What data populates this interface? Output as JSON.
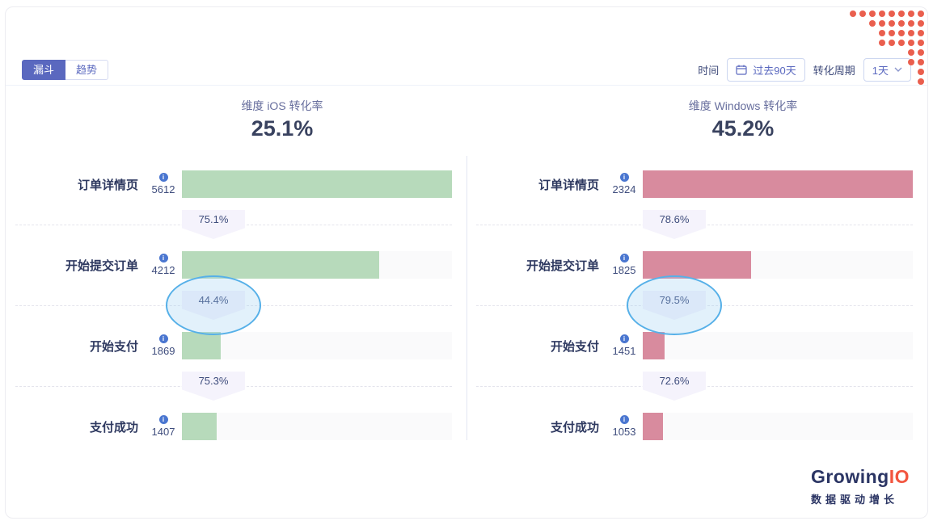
{
  "tabs": [
    {
      "label": "漏斗",
      "active": true
    },
    {
      "label": "趋势",
      "active": false
    }
  ],
  "controls": {
    "time_label": "时间",
    "time_range": "过去90天",
    "period_label": "转化周期",
    "period_value": "1天"
  },
  "funnels": [
    {
      "key": "ios",
      "dim_label": "维度 iOS 转化率",
      "overall_rate": "25.1%",
      "bar_color": "#b7dabb",
      "steps": [
        {
          "name": "订单详情页",
          "count": "5612",
          "bar_pct": 100
        },
        {
          "name": "开始提交订单",
          "count": "4212",
          "bar_pct": 73
        },
        {
          "name": "开始支付",
          "count": "1869",
          "bar_pct": 14.5
        },
        {
          "name": "支付成功",
          "count": "1407",
          "bar_pct": 13
        }
      ],
      "rates": [
        {
          "value": "75.1%",
          "highlighted": false
        },
        {
          "value": "44.4%",
          "highlighted": true
        },
        {
          "value": "75.3%",
          "highlighted": false
        }
      ]
    },
    {
      "key": "windows",
      "dim_label": "维度 Windows 转化率",
      "overall_rate": "45.2%",
      "bar_color": "#d88b9e",
      "steps": [
        {
          "name": "订单详情页",
          "count": "2324",
          "bar_pct": 100
        },
        {
          "name": "开始提交订单",
          "count": "1825",
          "bar_pct": 40
        },
        {
          "name": "开始支付",
          "count": "1451",
          "bar_pct": 8
        },
        {
          "name": "支付成功",
          "count": "1053",
          "bar_pct": 7.5
        }
      ],
      "rates": [
        {
          "value": "78.6%",
          "highlighted": false
        },
        {
          "value": "79.5%",
          "highlighted": true
        },
        {
          "value": "72.6%",
          "highlighted": false
        }
      ]
    }
  ],
  "logo": {
    "brand_primary": "Growing",
    "brand_accent": "IO",
    "tagline": "数据驱动增长"
  },
  "colors": {
    "accent": "#5a68bf",
    "ios_bar": "#b7dabb",
    "windows_bar": "#d88b9e",
    "highlight_stroke": "#56b0e8",
    "highlight_fill": "rgba(151,206,241,0.28)",
    "corner_dot": "#ea5f4e",
    "logo_navy": "#2b3564",
    "logo_orange": "#f2553f"
  },
  "decoration": {
    "dots_rows": [
      8,
      6,
      5,
      5,
      2,
      2,
      1,
      1
    ]
  },
  "chart_data": [
    {
      "type": "bar",
      "title": "维度 iOS 转化率 25.1%",
      "categories": [
        "订单详情页",
        "开始提交订单",
        "开始支付",
        "支付成功"
      ],
      "values": [
        5612,
        4212,
        1869,
        1407
      ],
      "step_conversion_rates": [
        "75.1%",
        "44.4%",
        "75.3%"
      ],
      "overall_conversion_rate": "25.1%"
    },
    {
      "type": "bar",
      "title": "维度 Windows 转化率 45.2%",
      "categories": [
        "订单详情页",
        "开始提交订单",
        "开始支付",
        "支付成功"
      ],
      "values": [
        2324,
        1825,
        1451,
        1053
      ],
      "step_conversion_rates": [
        "78.6%",
        "79.5%",
        "72.6%"
      ],
      "overall_conversion_rate": "45.2%"
    }
  ]
}
